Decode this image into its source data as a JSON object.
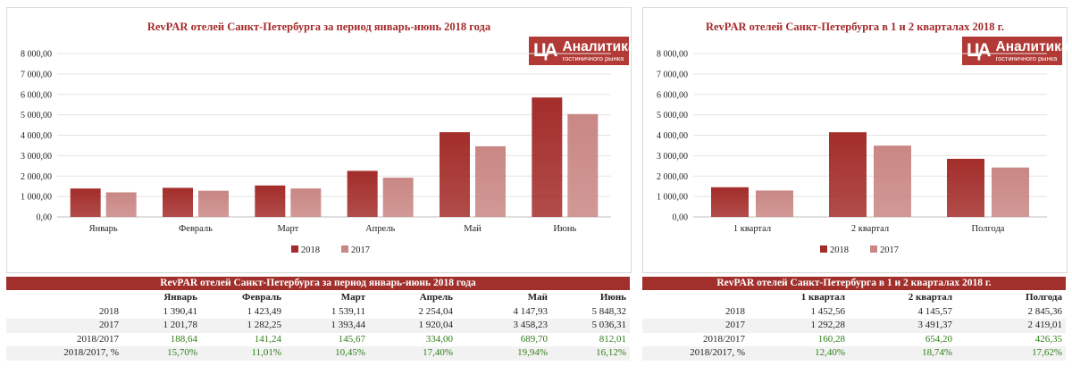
{
  "charts": [
    {
      "title": "RevPAR отелей Санкт-Петербурга за период январь-июнь 2018 года",
      "logo": {
        "name": "Аналитика",
        "subtitle": "гостиничного рынка",
        "mark": "ЦА"
      },
      "chart_data": {
        "type": "bar",
        "title": "RevPAR отелей Санкт-Петербурга за период январь-июнь 2018 года",
        "categories": [
          "Январь",
          "Февраль",
          "Март",
          "Апрель",
          "Май",
          "Июнь"
        ],
        "series": [
          {
            "name": "2018",
            "color": "#a32d2a",
            "values": [
              1390.41,
              1423.49,
              1539.11,
              2254.04,
              4147.93,
              5848.32
            ]
          },
          {
            "name": "2017",
            "color": "#c98784",
            "values": [
              1201.78,
              1282.25,
              1393.44,
              1920.04,
              3458.23,
              5036.31
            ]
          }
        ],
        "ylim": [
          0,
          8000
        ],
        "yticks": [
          "0,00",
          "1 000,00",
          "2 000,00",
          "3 000,00",
          "4 000,00",
          "5 000,00",
          "6 000,00",
          "7 000,00",
          "8 000,00"
        ],
        "xlabel": "",
        "ylabel": "",
        "legend": "bottom"
      },
      "table": {
        "title": "RevPAR отелей Санкт-Петербурга за период январь-июнь 2018 года",
        "headers": [
          "Январь",
          "Февраль",
          "Март",
          "Апрель",
          "Май",
          "Июнь"
        ],
        "rows": [
          {
            "label": "2018",
            "values": [
              "1 390,41",
              "1 423,49",
              "1 539,11",
              "2 254,04",
              "4 147,93",
              "5 848,32"
            ],
            "positive": false
          },
          {
            "label": "2017",
            "values": [
              "1 201,78",
              "1 282,25",
              "1 393,44",
              "1 920,04",
              "3 458,23",
              "5 036,31"
            ],
            "positive": false
          },
          {
            "label": "2018/2017",
            "values": [
              "188,64",
              "141,24",
              "145,67",
              "334,00",
              "689,70",
              "812,01"
            ],
            "positive": true
          },
          {
            "label": "2018/2017, %",
            "values": [
              "15,70%",
              "11,01%",
              "10,45%",
              "17,40%",
              "19,94%",
              "16,12%"
            ],
            "positive": true
          }
        ]
      }
    },
    {
      "title": "RevPAR отелей Санкт-Петербурга в 1 и 2 кварталах 2018 г.",
      "logo": {
        "name": "Аналитика",
        "subtitle": "гостиничного рынка",
        "mark": "ЦА"
      },
      "chart_data": {
        "type": "bar",
        "title": "RevPAR отелей Санкт-Петербурга в 1 и 2 кварталах 2018 г.",
        "categories": [
          "1 квартал",
          "2 квартал",
          "Полгода"
        ],
        "series": [
          {
            "name": "2018",
            "color": "#a32d2a",
            "values": [
              1452.56,
              4145.57,
              2845.36
            ]
          },
          {
            "name": "2017",
            "color": "#c98784",
            "values": [
              1292.28,
              3491.37,
              2419.01
            ]
          }
        ],
        "ylim": [
          0,
          8000
        ],
        "yticks": [
          "0,00",
          "1 000,00",
          "2 000,00",
          "3 000,00",
          "4 000,00",
          "5 000,00",
          "6 000,00",
          "7 000,00",
          "8 000,00"
        ],
        "xlabel": "",
        "ylabel": "",
        "legend": "bottom"
      },
      "table": {
        "title": "RevPAR отелей Санкт-Петербурга в 1 и 2 кварталах 2018 г.",
        "headers": [
          "1 квартал",
          "2 квартал",
          "Полгода"
        ],
        "rows": [
          {
            "label": "2018",
            "values": [
              "1 452,56",
              "4 145,57",
              "2 845,36"
            ],
            "positive": false
          },
          {
            "label": "2017",
            "values": [
              "1 292,28",
              "3 491,37",
              "2 419,01"
            ],
            "positive": false
          },
          {
            "label": "2018/2017",
            "values": [
              "160,28",
              "654,20",
              "426,35"
            ],
            "positive": true
          },
          {
            "label": "2018/2017, %",
            "values": [
              "12,40%",
              "18,74%",
              "17,62%"
            ],
            "positive": true
          }
        ]
      }
    }
  ]
}
